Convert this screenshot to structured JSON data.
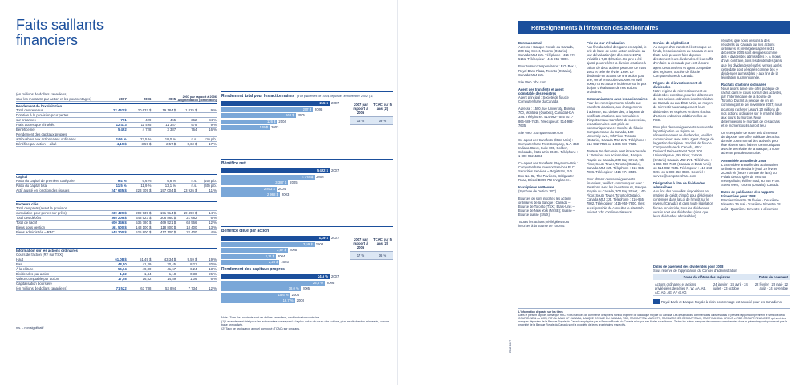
{
  "left": {
    "title_line1": "Faits saillants",
    "title_line2": "financiers",
    "unit_note_1": "(en millions de dollars canadiens,",
    "unit_note_2": "sauf les montants par action et les pourcentages)",
    "col_headers": [
      "2007",
      "2006",
      "2005",
      "2007 par rapport à 2006",
      "Augmentation (diminution)"
    ],
    "sections": [
      {
        "title": "Rendement de l'exploitation",
        "rows": [
          {
            "label": "Total des revenus",
            "v": [
              "22 462 $",
              "20 637 $",
              "19 184 $",
              "1 825 $",
              "9 %"
            ]
          },
          {
            "label": "Dotation à la provision pour pertes",
            "v": [
              "",
              "",
              "",
              "",
              ""
            ]
          },
          {
            "label": "   sur créances",
            "v": [
              "791",
              "429",
              "455",
              "362",
              "84 %"
            ]
          },
          {
            "label": "Frais autres que d'intérêt",
            "v": [
              "12 473",
              "11 495",
              "11 357",
              "978",
              "9 %"
            ]
          },
          {
            "label": "Bénéfice net",
            "v": [
              "5 492",
              "4 728",
              "3 387",
              "764",
              "16 %"
            ]
          },
          {
            "label": "Rendement des capitaux propres",
            "v": [
              "",
              "",
              "",
              "",
              ""
            ]
          },
          {
            "label": "   attribuables aux actionnaires ordinaires",
            "v": [
              "24,6 %",
              "23,5 %",
              "18,0 %",
              "n.s.",
              "110 p.b."
            ]
          },
          {
            "label": "Bénéfice par action – dilué",
            "v": [
              "4,19 $",
              "3,59 $",
              "2,57 $",
              "0,60 $",
              "17 %"
            ]
          }
        ]
      },
      {
        "title": "Capital",
        "rows": [
          {
            "label": "Ratio du capital de première catégorie",
            "v": [
              "9,4 %",
              "9,6 %",
              "9,6 %",
              "n.s.",
              "(20) p.b."
            ]
          },
          {
            "label": "Ratio du capital total",
            "v": [
              "11,5 %",
              "11,9 %",
              "13,1 %",
              "n.s.",
              "(40) p.b."
            ]
          },
          {
            "label": "Actif ajusté en fonction des risques",
            "v": [
              "247 635 $",
              "223 709 $",
              "197 004 $",
              "23 926 $",
              "11 %"
            ]
          }
        ]
      },
      {
        "title": "Facteurs clés",
        "rows": [
          {
            "label": "Total des prêts (avant la provision",
            "v": [
              "",
              "",
              "",
              "",
              ""
            ]
          },
          {
            "label": "   cumulative pour pertes sur prêts)",
            "v": [
              "239 429 $",
              "209 939 $",
              "191 914 $",
              "29 490 $",
              "14 %"
            ]
          },
          {
            "label": "Total des dépôts",
            "v": [
              "365 205 $",
              "343 523 $",
              "306 860 $",
              "21 682",
              "6 %"
            ]
          },
          {
            "label": "Total de l'actif",
            "v": [
              "600 346 $",
              "536 780 $",
              "469 521 $",
              "63 566",
              "12 %"
            ]
          },
          {
            "label": "Biens sous gestion",
            "v": [
              "161 500 $",
              "143 100 $",
              "118 800 $",
              "18 400",
              "13 %"
            ]
          },
          {
            "label": "Biens administrés – RBC",
            "v": [
              "548 200 $",
              "525 800 $",
              "417 100 $",
              "22 400",
              "4 %"
            ]
          }
        ]
      },
      {
        "title": "Information sur les actions ordinaires",
        "rows": [
          {
            "label": "Cours de l'action (RY sur TSX)",
            "v": [
              "",
              "",
              "",
              "",
              ""
            ]
          },
          {
            "label": "   Haut",
            "v": [
              "61,08 $",
              "51,49 $",
              "43,34 $",
              "9,59 $",
              "19 %"
            ]
          },
          {
            "label": "   Bas",
            "v": [
              "48,50",
              "41,29",
              "30,45",
              "8,21",
              "20 %"
            ]
          },
          {
            "label": "   À la clôture",
            "v": [
              "56,04",
              "49,80",
              "41,67",
              "6,24",
              "13 %"
            ]
          },
          {
            "label": "Dividendes par action",
            "v": [
              "1,82",
              "1,44",
              "1,18",
              "0,38",
              "26 %"
            ]
          },
          {
            "label": "Valeur comptable par action",
            "v": [
              "17,58",
              "16,52",
              "14,89",
              "1,06",
              "6 %"
            ]
          },
          {
            "label": "Capitalisation boursière",
            "v": [
              "",
              "",
              "",
              "",
              ""
            ]
          },
          {
            "label": "   (en millions de dollars canadiens)",
            "v": [
              "71 522",
              "63 788",
              "53 894",
              "7 734",
              "12 %"
            ]
          }
        ]
      }
    ],
    "footnote": "n.s. – non significatif"
  },
  "charts": [
    {
      "title": "Rendement total pour les actionnaires",
      "title_note": "(d'un placement de 100 $ depuis le 1er novembre 2002) (1)",
      "bars": [
        {
          "year": "2007",
          "value": 245,
          "label": "245 $"
        },
        {
          "year": "2006",
          "value": 207,
          "label": "207 $"
        },
        {
          "year": "2005",
          "value": 168,
          "label": "168 $"
        },
        {
          "year": "2004",
          "value": 126,
          "label": "126 $"
        },
        {
          "year": "2003",
          "value": 109,
          "label": "109 $"
        }
      ],
      "box": {
        "title": "2007 par rapport à 2006",
        "col2": "TCAC sur 5 ans (2)",
        "v1": "16 %",
        "v2": "19 %"
      }
    },
    {
      "title": "Bénéfice net",
      "title_note": "",
      "bars": [
        {
          "year": "2007",
          "value": 5492,
          "label": "5 492 $"
        },
        {
          "year": "2006",
          "value": 4728,
          "label": "4 728 $"
        },
        {
          "year": "2005",
          "value": 3387,
          "label": "3 387 $"
        },
        {
          "year": "2004",
          "value": 2803,
          "label": "2 803 $"
        },
        {
          "year": "2003",
          "value": 2968,
          "label": "2 968 $"
        }
      ]
    },
    {
      "title": "Bénéfice dilué par action",
      "title_note": "",
      "bars": [
        {
          "year": "2007",
          "value": 4.19,
          "label": "4,19 $"
        },
        {
          "year": "2006",
          "value": 3.59,
          "label": "3,59 $"
        },
        {
          "year": "2005",
          "value": 2.57,
          "label": "2,57 $"
        },
        {
          "year": "2004",
          "value": 2.11,
          "label": "2,11 $"
        },
        {
          "year": "2003",
          "value": 2.25,
          "label": "2,25 $"
        }
      ],
      "box": {
        "title": "2007 par rapport à 2006",
        "col2": "TCAC sur 5 ans (2)",
        "v1": "17 %",
        "v2": "16 %"
      }
    },
    {
      "title": "Rendement des capitaux propres",
      "title_note": "",
      "bars": [
        {
          "year": "2007",
          "value": 24.6,
          "label": "24,6 %"
        },
        {
          "year": "2006",
          "value": 23.5,
          "label": "23,5 %"
        },
        {
          "year": "2005",
          "value": 18.0,
          "label": "18,0 %"
        },
        {
          "year": "2004",
          "value": 15.6,
          "label": "15,6 %"
        },
        {
          "year": "2003",
          "value": 16.7,
          "label": "16,7 %"
        }
      ]
    }
  ],
  "chart_notes": [
    "Note : Tous les montants sont en dollars canadiens, sauf indication contraire.",
    "(1)   Le rendement total pour les actionnaires correspond à la plus-value du cours des actions, plus les dividendes réinvestis, sur une base annualisée.",
    "(2)   Taux de croissance annuel composé (TCAC) sur cinq ans."
  ],
  "right": {
    "banner": "Renseignements à l'intention des actionnaires",
    "columns": [
      [
        {
          "h": "Bureau central",
          "t": "Adresse : Banque Royale du Canada, 200 Bay Street, Toronto (Ontario), Canada M5J 2J5. Téléphone : 416-974-5151. Télécopieur : 416-955-7800."
        },
        {
          "h": "",
          "t": "Pour toute correspondance : P.O. Box 1, Royal Bank Plaza, Toronto (Ontario), Canada M5J 2J5."
        },
        {
          "h": "",
          "t": "Site Web : rbc.com"
        },
        {
          "h": "Agent des transferts et agent comptable des registres",
          "t": "Agent principal : Société de fiducie Computershare du Canada."
        },
        {
          "h": "",
          "t": "Adresse : 1500, rue University, Bureau 700, Montréal (Québec), Canada H3A 3S8. Téléphone : 514-982-7555 ou 1-866-586-7635. Télécopieur : 514-982-7635."
        },
        {
          "h": "",
          "t": "Site Web : computershare.com"
        },
        {
          "h": "",
          "t": "Co-agent des transferts (États-Unis) : Computershare Trust Company, N.A. 350 Indiana Street, Suite 800, Golden, Colorado, États-Unis 80401. Téléphone : 1-800-962-4284."
        },
        {
          "h": "",
          "t": "Co-agent des transferts (Royaume-Uni) : Computershare Investor Services PLC, Securities Services – Registrars, P.O. Box No. 82, The Pavilions, Bridgwater Road, Bristol BS99 7NH Angleterre."
        },
        {
          "h": "Inscriptions en Bourse",
          "t": "(Symbole de l'action : RY)"
        },
        {
          "h": "",
          "t": "Bourses où sont inscrites les actions ordinaires de la Banque : Canada – Bourse de Toronto (TSX); États-Unis – Bourse de New York (NYSE); Suisse – Bourse suisse (SWX)."
        },
        {
          "h": "",
          "t": "Toutes les actions privilégiées sont inscrites à la Bourse de Toronto."
        }
      ],
      [
        {
          "h": "Prix du jour d'évaluation",
          "t": "Aux fins du calcul des gains en capital, le prix de base de notre action ordinaire au jour d'évaluation (22 décembre 1971) s'établit à 7,38 $ l'action. Ce prix a été ajusté pour refléter la division d'actions à raison de deux actions pour une de mars 1981 et celle de février 1990. Le dividende en actions de une action pour une, versé en octobre 2000 et en avril 2006, n'a eu aucune incidence sur le prix du jour d'évaluation de nos actions ordinaires."
        },
        {
          "h": "Communications avec les actionnaires",
          "t": "Pour des renseignements relatifs aux transferts d'actions, aux changements d'adresse, aux dividendes, à la perte de certificats d'actions, aux formulaires d'impôts et aux transferts de succession, les actionnaires sont priés de communiquer avec : Société de fiducie Computershare du Canada, 100 University Ave., 9th Floor, Toronto (Ontario), Canada M5J 2Y1. Téléphone : 514-982-7555 ou 1-866-586-7635."
        },
        {
          "h": "",
          "t": "Toute autre demande peut être adressée à : Services aux actionnaires, Banque Royale du Canada, 200 Bay Street, 9th Floor, South Tower, Toronto (Ontario), Canada M5J 2J5. Téléphone : 416-955-7806. Télécopieur : 416-974-3535."
        },
        {
          "h": "",
          "t": "Pour obtenir des renseignements financiers, veuillez communiquer avec : Relations avec les investisseurs, Banque Royale du Canada, 200 Bay Street, 14th Floor, South Tower, Toronto (Ontario), Canada M5J 2J5. Téléphone : 416-955-7802. Télécopieur : 416-955-7800. Il est aussi possible de consulter le site Web suivant : rbc.com/investisseurs"
        }
      ],
      [
        {
          "h": "Service de dépôt direct",
          "t": "Au moyen d'un transfert électronique de fonds, les actionnaires du Canada et des États-Unis peuvent faire déposer directement leurs dividendes. Il leur suffit d'en faire la demande par écrit à notre agent des transferts et agent comptable des registres, Société de fiducie Computershare du Canada."
        },
        {
          "h": "Régime de réinvestissement de dividendes",
          "t": "Notre régime de réinvestissement de dividendes constitue, pour les détenteurs de nos actions ordinaires inscrits résidant au Canada ou aux États-Unis, un moyen de réinvestir automatiquement leurs dividendes en espèces en titres d'achat d'actions ordinaires additionnelles de RBC."
        },
        {
          "h": "",
          "t": "Pour plus de renseignements au sujet de la participation au régime de réinvestissement de dividendes, veuillez communiquer avec notre agent chargé de la gestion du régime : Société de fiducie Computershare du Canada, Attn : Dividend Reinvestment Dept. 100 University Ave., 9th Floor, Toronto (Ontario) Canada M5J 2Y1. Téléphone : 1-866-586-7635 (Canada et États-Unis) ou 514-982-7555. Télécopieur : 416-263-9394 ou 1-888-453-0330. Courriel : service@computershare.com"
        },
        {
          "h": "Désignation à titre de dividendes admissibles",
          "t": "Aux fins des nouvelles dispositions en matière de crédit d'impôt pour dividendes contenues dans la Loi de l'impôt sur le revenu (Canada) et dans toute législation fiscale provinciale, tous les dividendes versés sont des dividendes (ainsi que leurs dividendes admissibles)."
        }
      ],
      [
        {
          "h": "",
          "t": "réputés) que nous versons à des résidents du Canada sur nos actions ordinaires et privilégiées après le 31 décembre 2005 sont désignés comme des « dividendes admissibles ». À moins d'avis contraire, tous les dividendes (ainsi que les dividendes réputés) versés après cette date sont désignés comme des « dividendes admissibles » aux fins de la législation susmentionnée."
        },
        {
          "h": "Rachats d'actions ordinaires",
          "t": "Nous avons lancé une offre publique de rachat dans le cours normal des activités, par l'intermédiaire de la Bourse de Toronto. Durant la période de un an commençant le 1er novembre 2007, nous pourrons racheter jusqu'à 20 millions de nos actions ordinaires sur le marché libre, aux cours du marché. Nous déterminerons le montant de ces achats et le moment où ils auront lieu."
        },
        {
          "h": "",
          "t": "Un exemplaire de notre avis d'intention de déposer une offre publique de rachat dans le cours normal des activités peut être obtenu sans frais en communiquant avec le secrétaire de la Banque, à notre adresse postale torontoise."
        },
        {
          "h": "Assemblée annuelle de 2008",
          "t": "L'assemblée annuelle des actionnaires ordinaires se tiendra le jeudi 29 février 2008 à 9h (heure normale de l'Est) au Palais des congrès du Toronto métropolitain, édifice nord, au 255 Front Street West, Toronto (Ontario), Canada."
        },
        {
          "h": "Dates de publication des rapports trimestriels pour 2008",
          "t": "Premier trimestre 29 février · Deuxième trimestre 29 mai · Troisième trimestre 28 août · Quatrième trimestre 5 décembre"
        }
      ]
    ],
    "dividends": {
      "title": "Dates de paiement des dividendes pour 2008",
      "subtitle": "Sous réserve de l'approbation du Conseil d'administration",
      "headers": [
        "",
        "Dates de clôture des registres",
        "Dates de paiement"
      ],
      "rows": [
        [
          "Actions ordinaires et actions privilégiées de séries N, W, AA, AB, AC, AD, AE, AF et AG",
          "24 janvier · 24 avril · 24 juillet · 23 octobre",
          "22 février · 23 mai · 22 août · 24 novembre"
        ]
      ]
    },
    "logo_text": "Royal Bank et Banque Royale à plein pourcentage est associé pour les Canadiens",
    "legal_title": "L'information déposée sur les titres",
    "legal_text": "Dans le présent rapport, la marque RBC et les marques de commerce désignées sont la propriété de la Banque Royale du Canada. Les désignations commerciales utilisées dans le présent rapport comprennent le symbole de la COURONNE & du LION, ROYAL BANK OF CANADA, BANQUE ROYALE DU CANADA, RBC, RBC CAPITAL MARKETS, RBC MARCHÉS DES CAPITAUX, RBC FINANCIAL GROUP et RBC GROUPE FINANCIER, qui sont des marques déposées de la Banque Royale du Canada employées par la Banque Royale du Canada et/ou par ses filiales sous licence. Toutes les autres marques de commerce mentionnées dans le présent rapport qui ne sont pas la propriété de la Banque Royale du Canada sont la propriété de leurs propriétaires respectifs.",
    "page_label": "RBC 2007"
  }
}
